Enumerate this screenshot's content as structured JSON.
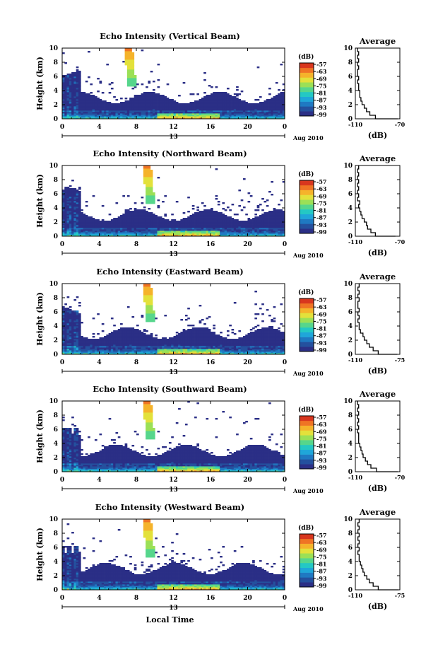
{
  "figure": {
    "xlabel": "Local Time",
    "date_label": "Aug 2010",
    "day_marker": "13",
    "cbar_unit": "(dB)",
    "avg_title": "Average",
    "avg_xlabel": "(dB)"
  },
  "chart_data": [
    {
      "type": "heatmap",
      "title": "Echo Intensity (Vertical Beam)",
      "ylabel": "Height (km)",
      "xlabel": "",
      "x_ticks": [
        "0",
        "4",
        "8",
        "12",
        "16",
        "20",
        "0"
      ],
      "xlim": [
        0,
        24
      ],
      "y_ticks": [
        "0",
        "2",
        "4",
        "6",
        "8",
        "10"
      ],
      "ylim": [
        0,
        10
      ],
      "colorbar": {
        "ticks": [
          "-57",
          "-63",
          "-69",
          "-75",
          "-81",
          "-87",
          "-93",
          "-99"
        ],
        "range": [
          -99,
          -57
        ]
      },
      "average_profile": {
        "xlim": [
          -110,
          -70
        ],
        "x_ticks": [
          "-110",
          "-70"
        ],
        "y_ticks": [
          "0",
          "2",
          "4",
          "6",
          "8",
          "10"
        ],
        "height_km": [
          0,
          0.5,
          1,
          1.5,
          2,
          2.5,
          3,
          3.5,
          4,
          4.5,
          5,
          5.5,
          6,
          6.5,
          7,
          7.5,
          8,
          8.5,
          9,
          9.5,
          10
        ],
        "db": [
          -72,
          -92,
          -97,
          -100,
          -102,
          -104,
          -105,
          -106,
          -106,
          -107,
          -107,
          -108,
          -107,
          -108,
          -108,
          -107,
          -108,
          -107,
          -108,
          -107,
          -108
        ]
      }
    },
    {
      "type": "heatmap",
      "title": "Echo Intensity (Northward Beam)",
      "ylabel": "Height (km)",
      "xlabel": "",
      "x_ticks": [
        "0",
        "4",
        "8",
        "12",
        "16",
        "20",
        "0"
      ],
      "xlim": [
        0,
        24
      ],
      "y_ticks": [
        "0",
        "2",
        "4",
        "6",
        "8",
        "10"
      ],
      "ylim": [
        0,
        10
      ],
      "colorbar": {
        "ticks": [
          "-57",
          "-63",
          "-69",
          "-75",
          "-81",
          "-87",
          "-93",
          "-99"
        ],
        "range": [
          -99,
          -57
        ]
      },
      "average_profile": {
        "xlim": [
          -110,
          -70
        ],
        "x_ticks": [
          "-110",
          "-70"
        ],
        "y_ticks": [
          "0",
          "2",
          "4",
          "6",
          "8",
          "10"
        ],
        "height_km": [
          0,
          0.5,
          1,
          1.5,
          2,
          2.5,
          3,
          3.5,
          4,
          4.5,
          5,
          5.5,
          6,
          6.5,
          7,
          7.5,
          8,
          8.5,
          9,
          9.5,
          10
        ],
        "db": [
          -74,
          -92,
          -96,
          -99,
          -100,
          -102,
          -104,
          -105,
          -106,
          -107,
          -106,
          -108,
          -107,
          -108,
          -107,
          -108,
          -107,
          -108,
          -107,
          -108,
          -107
        ]
      }
    },
    {
      "type": "heatmap",
      "title": "Echo Intensity (Eastward Beam)",
      "ylabel": "Height (km)",
      "xlabel": "",
      "x_ticks": [
        "0",
        "4",
        "8",
        "12",
        "16",
        "20",
        "0"
      ],
      "xlim": [
        0,
        24
      ],
      "y_ticks": [
        "0",
        "2",
        "4",
        "6",
        "8",
        "10"
      ],
      "ylim": [
        0,
        10
      ],
      "colorbar": {
        "ticks": [
          "-57",
          "-63",
          "-69",
          "-75",
          "-81",
          "-87",
          "-93",
          "-99"
        ],
        "range": [
          -99,
          -57
        ]
      },
      "average_profile": {
        "xlim": [
          -110,
          -75
        ],
        "x_ticks": [
          "-110",
          "-75"
        ],
        "y_ticks": [
          "0",
          "2",
          "4",
          "6",
          "8",
          "10"
        ],
        "height_km": [
          0,
          0.5,
          1,
          1.5,
          2,
          2.5,
          3,
          3.5,
          4,
          4.5,
          5,
          5.5,
          6,
          6.5,
          7,
          7.5,
          8,
          8.5,
          9,
          9.5,
          10
        ],
        "db": [
          -77,
          -92,
          -96,
          -99,
          -101,
          -103,
          -104,
          -106,
          -107,
          -107,
          -108,
          -107,
          -108,
          -107,
          -108,
          -108,
          -107,
          -108,
          -107,
          -108,
          -107
        ]
      }
    },
    {
      "type": "heatmap",
      "title": "Echo Intensity (Southward Beam)",
      "ylabel": "Height (km)",
      "xlabel": "",
      "x_ticks": [
        "0",
        "4",
        "8",
        "12",
        "16",
        "20",
        "0"
      ],
      "xlim": [
        0,
        24
      ],
      "y_ticks": [
        "0",
        "2",
        "4",
        "6",
        "8",
        "10"
      ],
      "ylim": [
        0,
        10
      ],
      "colorbar": {
        "ticks": [
          "-57",
          "-63",
          "-69",
          "-75",
          "-81",
          "-87",
          "-93",
          "-99"
        ],
        "range": [
          -99,
          -57
        ]
      },
      "average_profile": {
        "xlim": [
          -110,
          -70
        ],
        "x_ticks": [
          "-110",
          "-70"
        ],
        "y_ticks": [
          "0",
          "2",
          "4",
          "6",
          "8",
          "10"
        ],
        "height_km": [
          0,
          0.5,
          1,
          1.5,
          2,
          2.5,
          3,
          3.5,
          4,
          4.5,
          5,
          5.5,
          6,
          6.5,
          7,
          7.5,
          8,
          8.5,
          9,
          9.5,
          10
        ],
        "db": [
          -72,
          -91,
          -96,
          -99,
          -101,
          -103,
          -104,
          -105,
          -106,
          -107,
          -107,
          -107,
          -108,
          -107,
          -108,
          -107,
          -108,
          -107,
          -108,
          -107,
          -108
        ]
      }
    },
    {
      "type": "heatmap",
      "title": "Echo Intensity (Westward Beam)",
      "ylabel": "Height (km)",
      "xlabel": "Local Time",
      "x_ticks": [
        "0",
        "4",
        "8",
        "12",
        "16",
        "20",
        "0"
      ],
      "xlim": [
        0,
        24
      ],
      "y_ticks": [
        "0",
        "2",
        "4",
        "6",
        "8",
        "10"
      ],
      "ylim": [
        0,
        10
      ],
      "colorbar": {
        "ticks": [
          "-57",
          "-63",
          "-69",
          "-75",
          "-81",
          "-87",
          "-93",
          "-99"
        ],
        "range": [
          -99,
          -57
        ]
      },
      "average_profile": {
        "xlim": [
          -110,
          -75
        ],
        "x_ticks": [
          "-110",
          "-75"
        ],
        "y_ticks": [
          "0",
          "2",
          "4",
          "6",
          "8",
          "10"
        ],
        "height_km": [
          0,
          0.5,
          1,
          1.5,
          2,
          2.5,
          3,
          3.5,
          4,
          4.5,
          5,
          5.5,
          6,
          6.5,
          7,
          7.5,
          8,
          8.5,
          9,
          9.5,
          10
        ],
        "db": [
          -76,
          -92,
          -96,
          -99,
          -101,
          -103,
          -104,
          -105,
          -106,
          -107,
          -107,
          -108,
          -107,
          -108,
          -107,
          -108,
          -107,
          -108,
          -107,
          -108,
          -107
        ]
      }
    }
  ]
}
